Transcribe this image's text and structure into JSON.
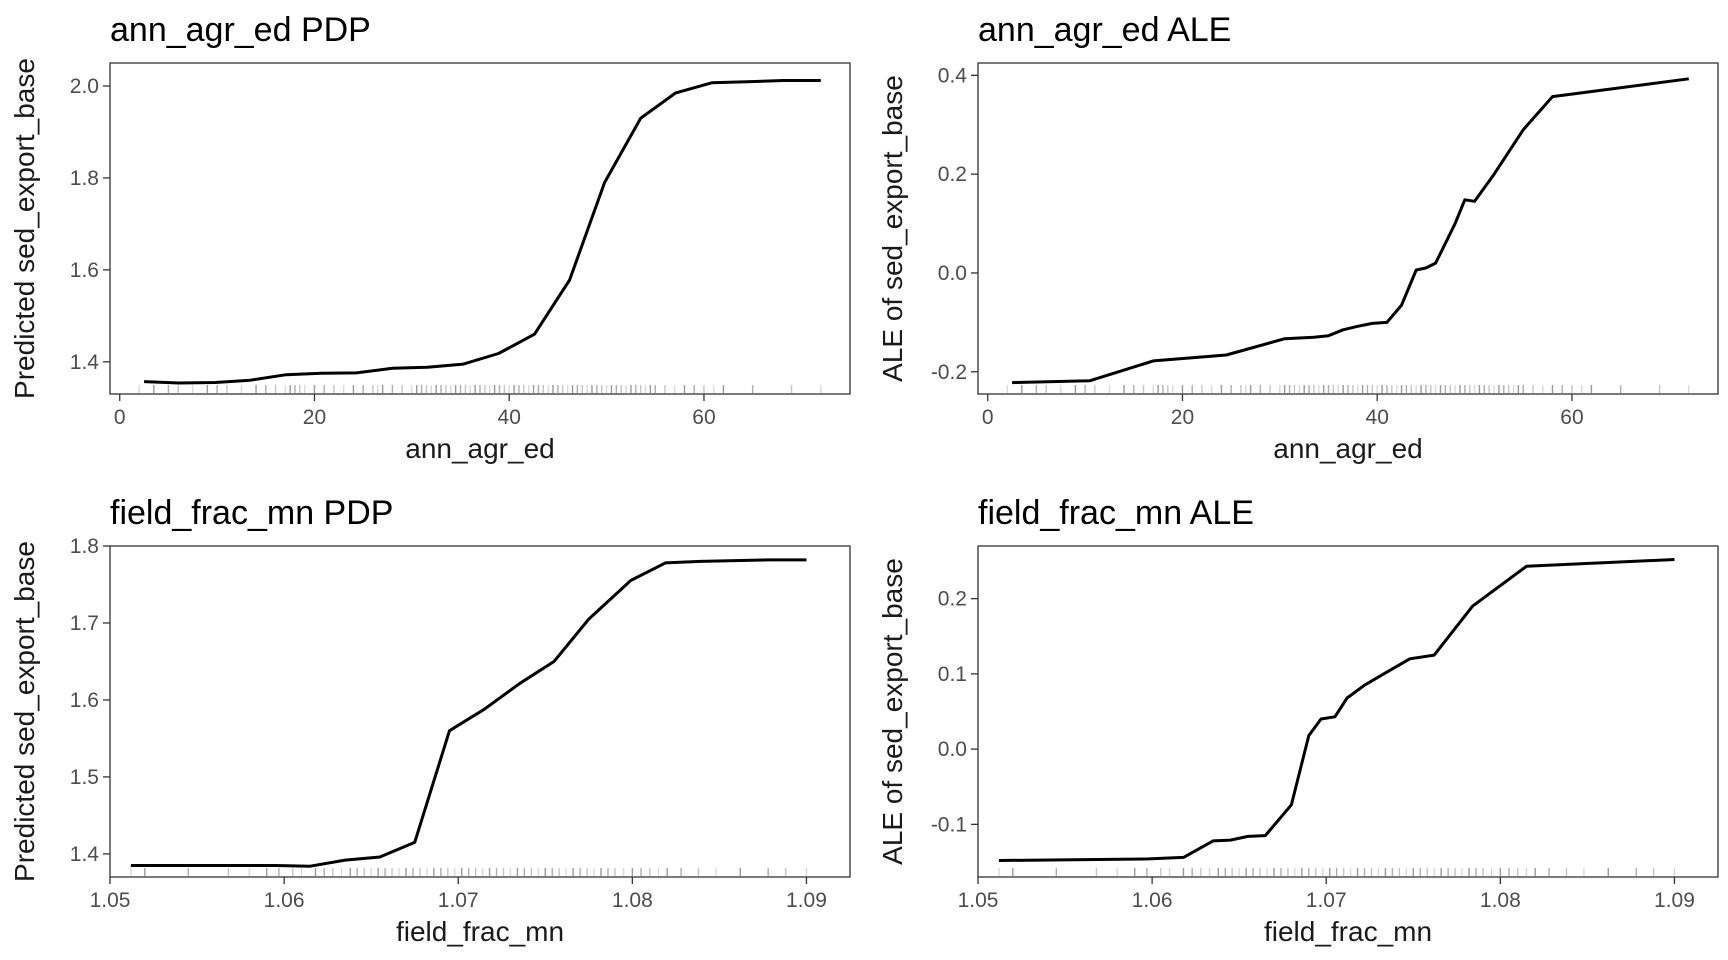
{
  "chart_data": [
    {
      "type": "line",
      "title": "ann_agr_ed PDP",
      "xlabel": "ann_agr_ed",
      "ylabel": "Predicted sed_export_base",
      "xlim": [
        -1,
        75
      ],
      "ylim": [
        1.33,
        2.05
      ],
      "xticks": [
        0,
        20,
        40,
        60
      ],
      "xtick_labels": [
        "0",
        "20",
        "40",
        "60"
      ],
      "yticks": [
        1.4,
        1.6,
        1.8,
        2.0
      ],
      "ytick_labels": [
        "1.4",
        "1.6",
        "1.8",
        "2.0"
      ],
      "x": [
        2.5,
        6.1,
        9.8,
        13.4,
        17.1,
        20.7,
        24.3,
        28.0,
        31.6,
        35.3,
        38.9,
        42.6,
        46.2,
        49.8,
        53.5,
        57.1,
        60.8,
        64.4,
        68.1,
        72.0
      ],
      "y": [
        1.357,
        1.354,
        1.355,
        1.36,
        1.372,
        1.375,
        1.376,
        1.386,
        1.388,
        1.395,
        1.418,
        1.46,
        1.578,
        1.79,
        1.93,
        1.985,
        2.007,
        2.009,
        2.012,
        2.012
      ],
      "rug": [
        2,
        3.5,
        5,
        6,
        7.5,
        9,
        10,
        11,
        12.5,
        14,
        15,
        16,
        17,
        17.5,
        18,
        18.5,
        19,
        20,
        21,
        22,
        23,
        24,
        25,
        26,
        26.5,
        27,
        28,
        29,
        30,
        30.5,
        31,
        31.5,
        32,
        32.5,
        33,
        33.5,
        34,
        34.5,
        35,
        35.5,
        36,
        36.5,
        37,
        37.5,
        38,
        38.5,
        39,
        39.5,
        40,
        40.5,
        41,
        41.5,
        42,
        42.5,
        43,
        43.5,
        44,
        44.5,
        45,
        45.5,
        46,
        46.5,
        47,
        47.5,
        48,
        48.5,
        49,
        49.5,
        50,
        50.5,
        51,
        51.5,
        52,
        52.5,
        53,
        53.5,
        54,
        54.5,
        55,
        56,
        57,
        58,
        59,
        60,
        61,
        62,
        65,
        69,
        72
      ]
    },
    {
      "type": "line",
      "title": "ann_agr_ed ALE",
      "xlabel": "ann_agr_ed",
      "ylabel": "ALE of sed_export_base",
      "xlim": [
        -1,
        75
      ],
      "ylim": [
        -0.245,
        0.425
      ],
      "xticks": [
        0,
        20,
        40,
        60
      ],
      "xtick_labels": [
        "0",
        "20",
        "40",
        "60"
      ],
      "yticks": [
        -0.2,
        0.0,
        0.2,
        0.4
      ],
      "ytick_labels": [
        "-0.2",
        "0.0",
        "0.2",
        "0.4"
      ],
      "x": [
        2.5,
        10.5,
        17.0,
        24.5,
        30.5,
        33.5,
        35.0,
        36.5,
        38.0,
        39.5,
        41.0,
        42.5,
        44.0,
        45.0,
        46.0,
        47.0,
        48.0,
        49.0,
        50.0,
        52.0,
        55.0,
        58.0,
        72.0
      ],
      "y": [
        -0.222,
        -0.218,
        -0.178,
        -0.166,
        -0.133,
        -0.13,
        -0.127,
        -0.115,
        -0.108,
        -0.102,
        -0.1,
        -0.065,
        0.006,
        0.01,
        0.02,
        0.06,
        0.1,
        0.148,
        0.145,
        0.2,
        0.29,
        0.357,
        0.393
      ],
      "rug": [
        2,
        3.5,
        5,
        6,
        7.5,
        9,
        10,
        11,
        12.5,
        14,
        15,
        16,
        17,
        17.5,
        18,
        18.5,
        19,
        20,
        21,
        22,
        23,
        24,
        25,
        26,
        26.5,
        27,
        28,
        29,
        30,
        30.5,
        31,
        31.5,
        32,
        32.5,
        33,
        33.5,
        34,
        34.5,
        35,
        35.5,
        36,
        36.5,
        37,
        37.5,
        38,
        38.5,
        39,
        39.5,
        40,
        40.5,
        41,
        41.5,
        42,
        42.5,
        43,
        43.5,
        44,
        44.5,
        45,
        45.5,
        46,
        46.5,
        47,
        47.5,
        48,
        48.5,
        49,
        49.5,
        50,
        50.5,
        51,
        51.5,
        52,
        52.5,
        53,
        53.5,
        54,
        54.5,
        55,
        56,
        57,
        58,
        59,
        60,
        61,
        62,
        65,
        69,
        72
      ]
    },
    {
      "type": "line",
      "title": "field_frac_mn PDP",
      "xlabel": "field_frac_mn",
      "ylabel": "Predicted sed_export_base",
      "xlim": [
        1.05,
        1.0925
      ],
      "ylim": [
        1.37,
        1.8
      ],
      "xticks": [
        1.05,
        1.06,
        1.07,
        1.08,
        1.09
      ],
      "xtick_labels": [
        "1.05",
        "1.06",
        "1.07",
        "1.08",
        "1.09"
      ],
      "yticks": [
        1.4,
        1.5,
        1.6,
        1.7,
        1.8
      ],
      "ytick_labels": [
        "1.4",
        "1.5",
        "1.6",
        "1.7",
        "1.8"
      ],
      "x": [
        1.0512,
        1.0535,
        1.0555,
        1.0575,
        1.0595,
        1.0615,
        1.0635,
        1.0655,
        1.0675,
        1.0695,
        1.0715,
        1.0735,
        1.0755,
        1.0775,
        1.0799,
        1.0819,
        1.0839,
        1.0859,
        1.0879,
        1.09
      ],
      "y": [
        1.385,
        1.385,
        1.385,
        1.385,
        1.385,
        1.384,
        1.392,
        1.396,
        1.415,
        1.56,
        1.588,
        1.621,
        1.65,
        1.705,
        1.755,
        1.778,
        1.78,
        1.781,
        1.782,
        1.782
      ],
      "rug": [
        1.0512,
        1.052,
        1.0545,
        1.0568,
        1.058,
        1.059,
        1.0597,
        1.0605,
        1.061,
        1.0618,
        1.0623,
        1.0628,
        1.0633,
        1.0638,
        1.0642,
        1.0646,
        1.065,
        1.0654,
        1.0658,
        1.0662,
        1.0666,
        1.067,
        1.0674,
        1.0678,
        1.0682,
        1.0686,
        1.069,
        1.0694,
        1.0698,
        1.0702,
        1.0706,
        1.071,
        1.0714,
        1.0718,
        1.0722,
        1.0726,
        1.073,
        1.0734,
        1.0738,
        1.0742,
        1.0746,
        1.075,
        1.0754,
        1.0758,
        1.0762,
        1.0766,
        1.077,
        1.0774,
        1.0778,
        1.0782,
        1.0786,
        1.079,
        1.0795,
        1.08,
        1.0805,
        1.081,
        1.0815,
        1.082,
        1.0828,
        1.0838,
        1.0848,
        1.0862,
        1.0878,
        1.0888,
        1.09
      ]
    },
    {
      "type": "line",
      "title": "field_frac_mn ALE",
      "xlabel": "field_frac_mn",
      "ylabel": "ALE of sed_export_base",
      "xlim": [
        1.05,
        1.0925
      ],
      "ylim": [
        -0.17,
        0.27
      ],
      "xticks": [
        1.05,
        1.06,
        1.07,
        1.08,
        1.09
      ],
      "xtick_labels": [
        "1.05",
        "1.06",
        "1.07",
        "1.08",
        "1.09"
      ],
      "yticks": [
        -0.1,
        0.0,
        0.1,
        0.2
      ],
      "ytick_labels": [
        "-0.1",
        "0.0",
        "0.1",
        "0.2"
      ],
      "x": [
        1.0512,
        1.0555,
        1.0598,
        1.0618,
        1.0635,
        1.0645,
        1.0655,
        1.0665,
        1.068,
        1.069,
        1.0697,
        1.0705,
        1.0712,
        1.0722,
        1.0733,
        1.0748,
        1.0762,
        1.0784,
        1.0815,
        1.09
      ],
      "y": [
        -0.148,
        -0.147,
        -0.146,
        -0.144,
        -0.122,
        -0.121,
        -0.116,
        -0.115,
        -0.074,
        0.018,
        0.04,
        0.043,
        0.068,
        0.085,
        0.1,
        0.12,
        0.125,
        0.19,
        0.243,
        0.252
      ],
      "rug": [
        1.0512,
        1.052,
        1.0545,
        1.0568,
        1.058,
        1.059,
        1.0597,
        1.0605,
        1.061,
        1.0618,
        1.0623,
        1.0628,
        1.0633,
        1.0638,
        1.0642,
        1.0646,
        1.065,
        1.0654,
        1.0658,
        1.0662,
        1.0666,
        1.067,
        1.0674,
        1.0678,
        1.0682,
        1.0686,
        1.069,
        1.0694,
        1.0698,
        1.0702,
        1.0706,
        1.071,
        1.0714,
        1.0718,
        1.0722,
        1.0726,
        1.073,
        1.0734,
        1.0738,
        1.0742,
        1.0746,
        1.075,
        1.0754,
        1.0758,
        1.0762,
        1.0766,
        1.077,
        1.0774,
        1.0778,
        1.0782,
        1.0786,
        1.079,
        1.0795,
        1.08,
        1.0805,
        1.081,
        1.0815,
        1.082,
        1.0828,
        1.0838,
        1.0848,
        1.0862,
        1.0878,
        1.0888,
        1.09
      ]
    }
  ]
}
